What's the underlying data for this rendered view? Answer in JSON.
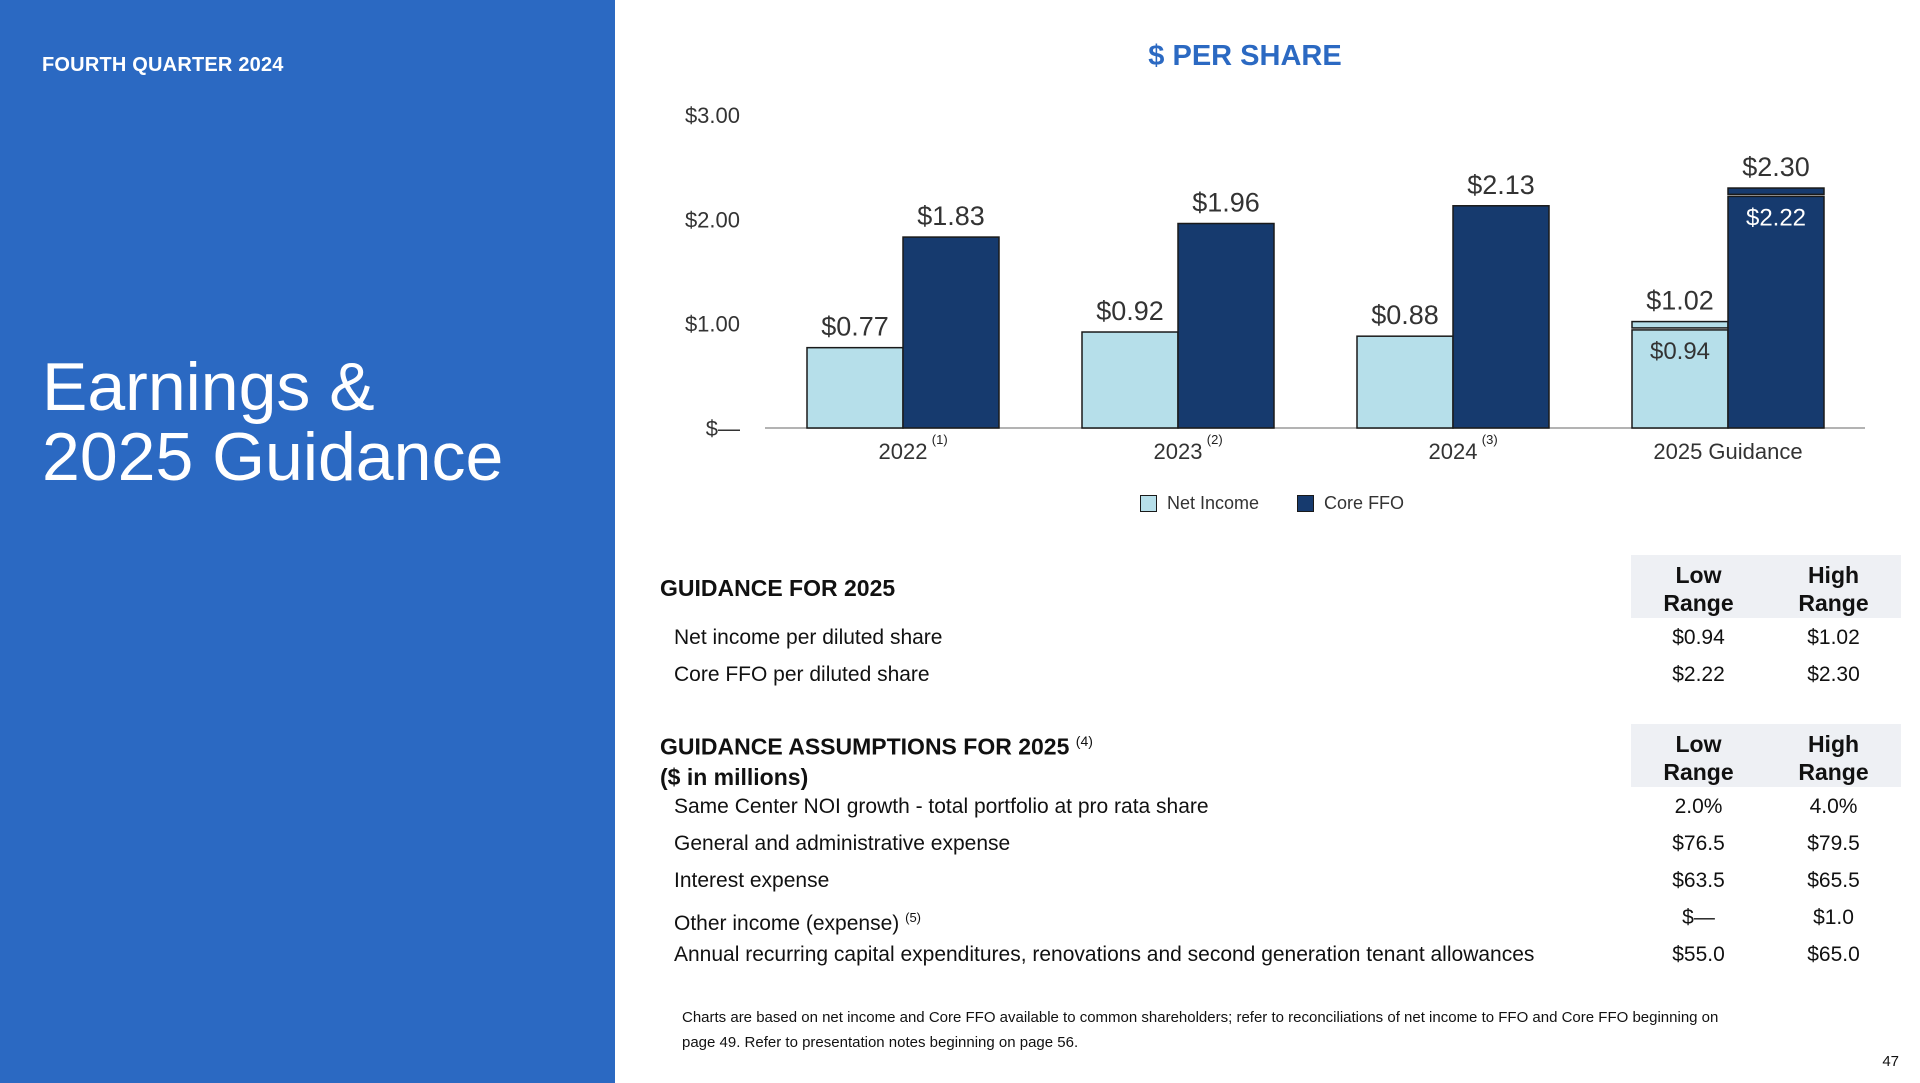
{
  "left": {
    "quarter": "FOURTH QUARTER 2024",
    "title_line1": "Earnings &",
    "title_line2": "2025 Guidance"
  },
  "chart_data": {
    "type": "bar",
    "title": "$ PER SHARE",
    "categories": [
      "2022",
      "2023",
      "2024",
      "2025 Guidance"
    ],
    "category_notes": [
      "(1)",
      "(2)",
      "(3)",
      ""
    ],
    "series": [
      {
        "name": "Net Income",
        "color": "#b6dfea",
        "values": [
          0.77,
          0.92,
          0.88,
          1.02
        ],
        "range_low": [
          null,
          null,
          null,
          0.94
        ],
        "labels": [
          "$0.77",
          "$0.92",
          "$0.88",
          "$1.02"
        ],
        "low_labels": [
          "",
          "",
          "",
          "$0.94"
        ]
      },
      {
        "name": "Core FFO",
        "color": "#163a6e",
        "values": [
          1.83,
          1.96,
          2.13,
          2.3
        ],
        "range_low": [
          null,
          null,
          null,
          2.22
        ],
        "labels": [
          "$1.83",
          "$1.96",
          "$2.13",
          "$2.30"
        ],
        "low_labels": [
          "",
          "",
          "",
          "$2.22"
        ]
      }
    ],
    "yticks": [
      0,
      1,
      2,
      3
    ],
    "ytick_labels": [
      "$—",
      "$1.00",
      "$2.00",
      "$3.00"
    ],
    "ylim": [
      0,
      3
    ],
    "legend_placement": "bottom-center",
    "grid": false
  },
  "guidance": {
    "heading": "GUIDANCE FOR 2025",
    "low_head_1": "Low",
    "low_head_2": "Range",
    "high_head_1": "High",
    "high_head_2": "Range",
    "rows": [
      {
        "label": "Net income per diluted share",
        "low": "$0.94",
        "high": "$1.02"
      },
      {
        "label": "Core FFO per diluted share",
        "low": "$2.22",
        "high": "$2.30"
      }
    ]
  },
  "assumptions": {
    "heading": "GUIDANCE ASSUMPTIONS FOR 2025",
    "heading_note": "(4)",
    "subheading": "($ in millions)",
    "low_head_1": "Low",
    "low_head_2": "Range",
    "high_head_1": "High",
    "high_head_2": "Range",
    "rows": [
      {
        "label": "Same Center NOI growth - total portfolio at pro rata share",
        "note": "",
        "low": "2.0%",
        "high": "4.0%"
      },
      {
        "label": "General and administrative expense",
        "note": "",
        "low": "$76.5",
        "high": "$79.5"
      },
      {
        "label": "Interest expense",
        "note": "",
        "low": "$63.5",
        "high": "$65.5"
      },
      {
        "label": "Other income (expense)",
        "note": "(5)",
        "low": "$—",
        "high": "$1.0"
      },
      {
        "label": "Annual recurring capital expenditures, renovations and second generation tenant allowances",
        "note": "",
        "low": "$55.0",
        "high": "$65.0"
      }
    ]
  },
  "footnote_line1": "Charts are based on net income and Core FFO available to common shareholders; refer to reconciliations of net income to FFO and Core FFO beginning on",
  "footnote_line2": "page 49. Refer to presentation notes beginning on page 56.",
  "page_number": "47"
}
